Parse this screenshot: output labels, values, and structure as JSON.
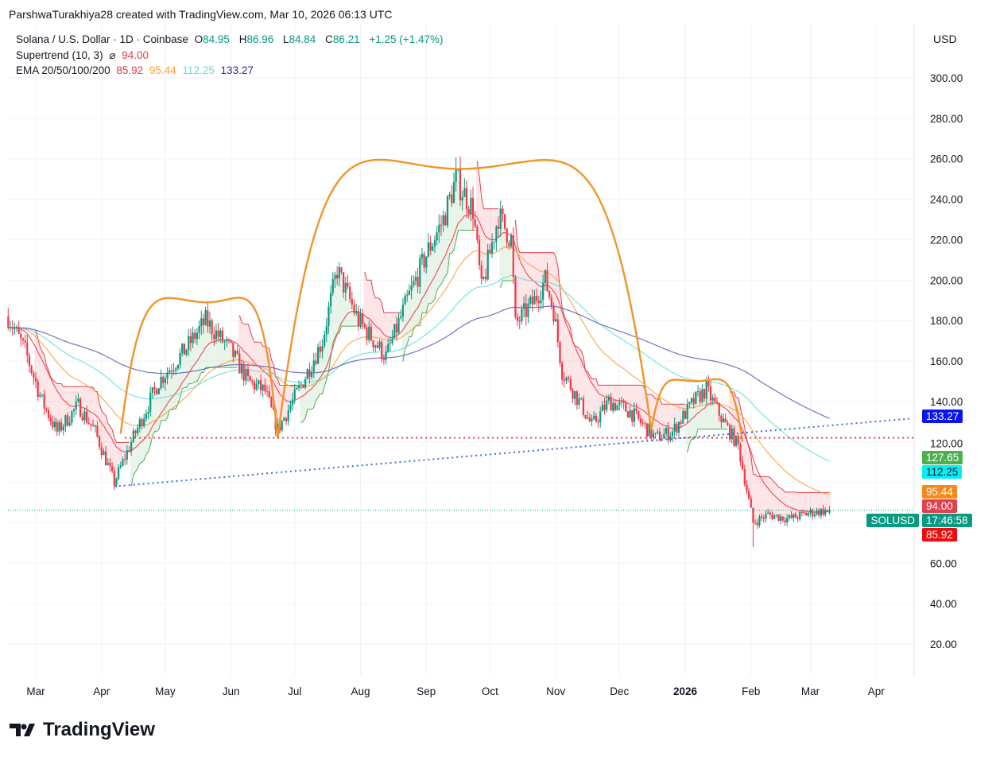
{
  "credit": "ParshwaTurakhiya28 created with TradingView.com, Mar 10, 2026 06:13 UTC",
  "legend": {
    "symbol": "Solana / U.S. Dollar · 1D · Coinbase",
    "o_label": "O",
    "o": "84.95",
    "h_label": "H",
    "h": "86.96",
    "l_label": "L",
    "l": "84.84",
    "c_label": "C",
    "c": "86.21",
    "change": "+1.25 (+1.47%)",
    "supertrend_label": "Supertrend (10, 3)",
    "supertrend_icon": "⌀",
    "supertrend_value": "94.00",
    "ema_label": "EMA 20/50/100/200",
    "ema20": "85.92",
    "ema50": "95.44",
    "ema100": "112.25",
    "ema200": "133.27"
  },
  "currency": "USD",
  "price_tags": [
    {
      "name": "ema200-tag",
      "text": "133.27",
      "price": 133.27,
      "color": "#0a14f0",
      "fg": "#fff"
    },
    {
      "name": "trendline-tag",
      "text": "127.65",
      "price": 127.65,
      "color": "#4caf50",
      "fg": "#fff"
    },
    {
      "name": "ema100-tag",
      "text": "112.25",
      "price": 112.25,
      "color": "#00f0f8",
      "fg": "#131722"
    },
    {
      "name": "ema50-tag",
      "text": "95.44",
      "price": 95.44,
      "color": "#f7891c",
      "fg": "#fff"
    },
    {
      "name": "supertrend-tag",
      "text": "94.00",
      "price": 94.0,
      "color": "#e0414f",
      "fg": "#fff"
    },
    {
      "name": "countdown-tag",
      "text": "17:46:58",
      "price": 86.21,
      "color": "#089981",
      "fg": "#fff"
    },
    {
      "name": "ema20-tag",
      "text": "85.92",
      "price": 83.5,
      "color": "#f20d0d",
      "fg": "#fff"
    }
  ],
  "symbol_tag": "SOLUSD",
  "logo": "TradingView",
  "chart_data": {
    "type": "candlestick",
    "ylim": [
      0,
      320
    ],
    "yticks": [
      "300.00",
      "280.00",
      "260.00",
      "240.00",
      "220.00",
      "200.00",
      "180.00",
      "160.00",
      "140.00",
      "120.00",
      "60.00",
      "40.00",
      "20.00"
    ],
    "ytick_values": [
      300,
      280,
      260,
      240,
      220,
      200,
      180,
      160,
      140,
      120,
      60,
      40,
      20
    ],
    "xticks": [
      {
        "label": "Mar",
        "day": 0
      },
      {
        "label": "Apr",
        "day": 31
      },
      {
        "label": "May",
        "day": 61
      },
      {
        "label": "Jun",
        "day": 92
      },
      {
        "label": "Jul",
        "day": 122
      },
      {
        "label": "Aug",
        "day": 153
      },
      {
        "label": "Sep",
        "day": 184
      },
      {
        "label": "Oct",
        "day": 214
      },
      {
        "label": "Nov",
        "day": 245
      },
      {
        "label": "Dec",
        "day": 275
      },
      {
        "label": "2026",
        "day": 306,
        "bold": true
      },
      {
        "label": "Feb",
        "day": 337
      },
      {
        "label": "Mar",
        "day": 365
      },
      {
        "label": "Apr",
        "day": 396
      }
    ],
    "price_path_days_since_mar_1_2025": [
      [
        -13,
        182
      ],
      [
        -5,
        165
      ],
      [
        3,
        140
      ],
      [
        10,
        125
      ],
      [
        20,
        138
      ],
      [
        28,
        125
      ],
      [
        37,
        100
      ],
      [
        45,
        120
      ],
      [
        58,
        150
      ],
      [
        70,
        165
      ],
      [
        80,
        180
      ],
      [
        92,
        165
      ],
      [
        100,
        150
      ],
      [
        108,
        145
      ],
      [
        114,
        126
      ],
      [
        125,
        148
      ],
      [
        135,
        170
      ],
      [
        142,
        205
      ],
      [
        152,
        180
      ],
      [
        165,
        162
      ],
      [
        175,
        190
      ],
      [
        185,
        215
      ],
      [
        192,
        230
      ],
      [
        198,
        250
      ],
      [
        206,
        235
      ],
      [
        210,
        195
      ],
      [
        218,
        232
      ],
      [
        224,
        220
      ],
      [
        226,
        178
      ],
      [
        235,
        190
      ],
      [
        240,
        200
      ],
      [
        244,
        185
      ],
      [
        248,
        155
      ],
      [
        256,
        140
      ],
      [
        262,
        128
      ],
      [
        270,
        140
      ],
      [
        280,
        135
      ],
      [
        292,
        122
      ],
      [
        300,
        125
      ],
      [
        310,
        140
      ],
      [
        316,
        146
      ],
      [
        324,
        130
      ],
      [
        331,
        118
      ],
      [
        338,
        80
      ],
      [
        345,
        84
      ],
      [
        355,
        82
      ],
      [
        365,
        85
      ],
      [
        374,
        86.21
      ]
    ],
    "last": {
      "open": 84.95,
      "high": 86.96,
      "low": 84.84,
      "close": 86.21
    },
    "indicators": {
      "ema_periods": [
        20,
        50,
        100,
        200
      ],
      "ema_colors": [
        "#f23645",
        "#f7a13c",
        "#5fe0d8",
        "#5b5bb8"
      ],
      "supertrend": {
        "period": 10,
        "multiplier": 3
      }
    },
    "annotations": {
      "arcs": [
        {
          "start": [
            40,
            124
          ],
          "peak": [
            81,
            189
          ],
          "end": [
            114,
            122
          ]
        },
        {
          "start": [
            114,
            122
          ],
          "peak": [
            200,
            255
          ],
          "end": [
            290,
            126
          ]
        },
        {
          "start": [
            290,
            126
          ],
          "peak": [
            311,
            150
          ],
          "end": [
            333,
            120
          ]
        }
      ],
      "horizontal_support": {
        "price": 122,
        "from_day": 42
      },
      "trendline": {
        "from": [
          37,
          98
        ],
        "to": [
          412,
          131.5
        ]
      },
      "current_price_line": 86.21
    }
  }
}
